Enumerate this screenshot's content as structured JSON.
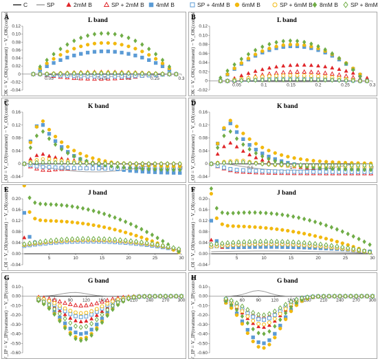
{
  "legend": [
    {
      "label": "C",
      "marker": "line",
      "color": "#1e1e1e"
    },
    {
      "label": "SP",
      "marker": "line",
      "color": "#9a9a9a"
    },
    {
      "label": "2mM B",
      "marker": "triangle",
      "color": "#e0262a"
    },
    {
      "label": "SP + 2mM B",
      "marker": "triangle-open",
      "color": "#e0262a"
    },
    {
      "label": "4mM B",
      "marker": "square",
      "color": "#5b9bd5"
    },
    {
      "label": "SP + 4mM B",
      "marker": "square-open",
      "color": "#5b9bd5"
    },
    {
      "label": "6mM B",
      "marker": "circle",
      "color": "#f2b90f"
    },
    {
      "label": "SP + 6mM B",
      "marker": "circle-open",
      "color": "#f2b90f"
    },
    {
      "label": "8mM B",
      "marker": "diamond",
      "color": "#70ad47"
    },
    {
      "label": "SP + 8mM B",
      "marker": "diamond-open",
      "color": "#70ad47"
    }
  ],
  "panels": [
    {
      "letter": "A",
      "title": "L band",
      "ylabel": "ΔV_OK = V_OK(treatment) − V_OK(control)"
    },
    {
      "letter": "B",
      "title": "L band",
      "ylabel": "ΔV_OK = V_OK(treatment) − V_OK(control)"
    },
    {
      "letter": "C",
      "title": "K band",
      "ylabel": "ΔV_OJ = V_OJ(treatment) − V_OJ(control)"
    },
    {
      "letter": "D",
      "title": "K band",
      "ylabel": "ΔV_OJ = V_OJ(treatment) − V_OJ(control)"
    },
    {
      "letter": "E",
      "title": "J band",
      "ylabel": "ΔV_OI = V_OI(treatment) − V_OI(control)"
    },
    {
      "letter": "F",
      "title": "J band",
      "ylabel": "ΔV_OI = V_OI(treatment) − V_OI(control)"
    },
    {
      "letter": "G",
      "title": "G band",
      "ylabel": "ΔV_IP = V_IP(treatment) − V_IP(control)"
    },
    {
      "letter": "H",
      "title": "G band",
      "ylabel": "ΔV_IP = V_IP(treatment) − V_IP(control)"
    }
  ],
  "chart_data": [
    {
      "panel": "A",
      "type": "scatter",
      "title": "L band",
      "xlim": [
        0,
        0.3
      ],
      "ylim": [
        -0.04,
        0.12
      ],
      "xticks": [
        0.05,
        0.1,
        0.15,
        0.2,
        0.25,
        0.3
      ],
      "xtick_labels": [
        "0.05",
        "0.1",
        "0.15",
        "0.2",
        "0.25",
        "0.3"
      ],
      "yticks": [
        -0.04,
        -0.02,
        0,
        0.02,
        0.04,
        0.06,
        0.08,
        0.1,
        0.12
      ],
      "ytick_labels": [
        "-0.04",
        "-0.02",
        "0",
        "0.02",
        "0.04",
        "0.06",
        "0.08",
        "0.10",
        "0.12"
      ],
      "x": {
        "start": 0.02,
        "end": 0.29,
        "n": 22
      },
      "series": [
        {
          "name": "C",
          "shape": "arc",
          "peak": 0,
          "at": 0.5,
          "w": 0.5
        },
        {
          "name": "SP",
          "shape": "arc",
          "peak": -0.006,
          "at": 0.5,
          "w": 0.45
        },
        {
          "name": "2mM B",
          "shape": "arc",
          "peak": 0.006,
          "at": 0.5,
          "w": 0.45
        },
        {
          "name": "SP + 2mM B",
          "shape": "arc",
          "peak": -0.012,
          "at": 0.45,
          "w": 0.4
        },
        {
          "name": "4mM B",
          "shape": "arc",
          "peak": 0.057,
          "at": 0.5,
          "w": 0.5
        },
        {
          "name": "SP + 4mM B",
          "shape": "arc",
          "peak": -0.006,
          "at": 0.5,
          "w": 0.45
        },
        {
          "name": "6mM B",
          "shape": "arc",
          "peak": 0.078,
          "at": 0.5,
          "w": 0.5
        },
        {
          "name": "SP + 6mM B",
          "shape": "arc",
          "peak": 0.004,
          "at": 0.5,
          "w": 0.45
        },
        {
          "name": "8mM B",
          "shape": "arc",
          "peak": 0.102,
          "at": 0.5,
          "w": 0.5
        },
        {
          "name": "SP + 8mM B",
          "shape": "arc",
          "peak": 0.002,
          "at": 0.5,
          "w": 0.45
        }
      ]
    },
    {
      "panel": "B",
      "type": "scatter",
      "title": "L band",
      "xlim": [
        0,
        0.3
      ],
      "ylim": [
        -0.02,
        0.12
      ],
      "xticks": [
        0.05,
        0.1,
        0.15,
        0.2,
        0.25,
        0.3
      ],
      "xtick_labels": [
        "0.05",
        "0.1",
        "0.15",
        "0.2",
        "0.25",
        "0.3"
      ],
      "yticks": [
        -0.02,
        0,
        0.02,
        0.04,
        0.06,
        0.08,
        0.1,
        0.12
      ],
      "ytick_labels": [
        "-0.02",
        "0",
        "0.02",
        "0.04",
        "0.06",
        "0.08",
        "0.10",
        "0.12"
      ],
      "x": {
        "start": 0.02,
        "end": 0.29,
        "n": 22
      },
      "series": [
        {
          "name": "C",
          "shape": "arc",
          "peak": 0,
          "at": 0.5,
          "w": 0.5
        },
        {
          "name": "SP",
          "shape": "arc",
          "peak": -0.002,
          "at": 0.5,
          "w": 0.45
        },
        {
          "name": "2mM B",
          "shape": "arc",
          "peak": 0.035,
          "at": 0.55,
          "w": 0.5
        },
        {
          "name": "SP + 2mM B",
          "shape": "arc",
          "peak": 0.02,
          "at": 0.55,
          "w": 0.45
        },
        {
          "name": "4mM B",
          "shape": "arc",
          "peak": 0.076,
          "at": 0.5,
          "w": 0.5
        },
        {
          "name": "SP + 4mM B",
          "shape": "arc",
          "peak": 0.005,
          "at": 0.5,
          "w": 0.45
        },
        {
          "name": "6mM B",
          "shape": "arc",
          "peak": 0.08,
          "at": 0.5,
          "w": 0.5
        },
        {
          "name": "SP + 6mM B",
          "shape": "arc",
          "peak": 0.012,
          "at": 0.5,
          "w": 0.45
        },
        {
          "name": "8mM B",
          "shape": "arc",
          "peak": 0.088,
          "at": 0.48,
          "w": 0.5
        },
        {
          "name": "SP + 8mM B",
          "shape": "arc",
          "peak": 0.003,
          "at": 0.5,
          "w": 0.45
        }
      ]
    },
    {
      "panel": "C",
      "type": "scatter",
      "title": "K band",
      "xlim": [
        0,
        2
      ],
      "ylim": [
        -0.04,
        0.16
      ],
      "xticks": [
        0.5,
        1,
        1.5,
        2
      ],
      "xtick_labels": [
        "0.5",
        "1",
        "1.5",
        "2"
      ],
      "yticks": [
        -0.04,
        0,
        0.04,
        0.08,
        0.12,
        0.16
      ],
      "ytick_labels": [
        "-0.04",
        "0",
        "0.04",
        "0.08",
        "0.12",
        "0.16"
      ],
      "x": {
        "start": 0.02,
        "end": 1.98,
        "n": 26
      },
      "series": [
        {
          "name": "C",
          "shape": "flat",
          "v": 0
        },
        {
          "name": "SP",
          "shape": "dip",
          "peak": -0.025,
          "at": 0.45,
          "w": 0.4
        },
        {
          "name": "2mM B",
          "shape": "rise-decay",
          "peak": 0.03,
          "at": 0.12,
          "end": 0
        },
        {
          "name": "SP + 2mM B",
          "shape": "rise-decay",
          "peak": -0.02,
          "at": 0.15,
          "end": -0.01
        },
        {
          "name": "4mM B",
          "shape": "rise-decay",
          "peak": 0.128,
          "at": 0.11,
          "end": -0.03
        },
        {
          "name": "SP + 4mM B",
          "shape": "rise-decay",
          "peak": -0.01,
          "at": 0.15,
          "end": -0.015
        },
        {
          "name": "6mM B",
          "shape": "rise-decay",
          "peak": 0.132,
          "at": 0.12,
          "end": -0.01
        },
        {
          "name": "SP + 6mM B",
          "shape": "rise-decay",
          "peak": 0.015,
          "at": 0.15,
          "end": 0
        },
        {
          "name": "8mM B",
          "shape": "rise-decay",
          "peak": 0.1,
          "at": 0.12,
          "end": -0.02
        },
        {
          "name": "SP + 8mM B",
          "shape": "rise-decay",
          "peak": 0.005,
          "at": 0.15,
          "end": 0
        }
      ]
    },
    {
      "panel": "D",
      "type": "scatter",
      "title": "K band",
      "xlim": [
        0,
        2
      ],
      "ylim": [
        -0.04,
        0.16
      ],
      "xticks": [
        0.5,
        1,
        1.5,
        2
      ],
      "xtick_labels": [
        "0.5",
        "1",
        "1.5",
        "2"
      ],
      "yticks": [
        -0.04,
        0,
        0.04,
        0.08,
        0.12,
        0.16
      ],
      "ytick_labels": [
        "-0.04",
        "0",
        "0.04",
        "0.08",
        "0.12",
        "0.16"
      ],
      "x": {
        "start": 0.02,
        "end": 1.98,
        "n": 26
      },
      "series": [
        {
          "name": "C",
          "shape": "flat",
          "v": 0
        },
        {
          "name": "SP",
          "shape": "dip",
          "peak": -0.02,
          "at": 0.5,
          "w": 0.4
        },
        {
          "name": "2mM B",
          "shape": "rise-decay",
          "peak": 0.065,
          "at": 0.13,
          "end": -0.02
        },
        {
          "name": "SP + 2mM B",
          "shape": "rise-decay",
          "peak": -0.025,
          "at": 0.2,
          "end": -0.03
        },
        {
          "name": "4mM B",
          "shape": "rise-decay",
          "peak": 0.125,
          "at": 0.12,
          "end": -0.02
        },
        {
          "name": "SP + 4mM B",
          "shape": "rise-decay",
          "peak": -0.02,
          "at": 0.2,
          "end": -0.025
        },
        {
          "name": "6mM B",
          "shape": "rise-decay",
          "peak": 0.135,
          "at": 0.13,
          "end": 0
        },
        {
          "name": "SP + 6mM B",
          "shape": "rise-decay",
          "peak": 0.01,
          "at": 0.2,
          "end": -0.01
        },
        {
          "name": "8mM B",
          "shape": "rise-decay",
          "peak": 0.1,
          "at": 0.12,
          "end": -0.02
        },
        {
          "name": "SP + 8mM B",
          "shape": "rise-decay",
          "peak": 0.005,
          "at": 0.2,
          "end": -0.005
        }
      ]
    },
    {
      "panel": "E",
      "type": "scatter",
      "title": "J band",
      "xlim": [
        0,
        30
      ],
      "ylim": [
        -0.04,
        0.2
      ],
      "xticks": [
        5,
        10,
        15,
        20,
        25,
        30
      ],
      "xtick_labels": [
        "5",
        "10",
        "15",
        "20",
        "25",
        "30"
      ],
      "yticks": [
        -0.04,
        0,
        0.04,
        0.08,
        0.12,
        0.16,
        0.2
      ],
      "ytick_labels": [
        "-0.04",
        "0.00",
        "0.04",
        "0.08",
        "0.12",
        "0.16",
        "0.20"
      ],
      "x": {
        "start": 0.3,
        "end": 29.5,
        "n": 30
      },
      "series": [
        {
          "name": "C",
          "shape": "flat",
          "v": 0
        },
        {
          "name": "SP",
          "shape": "arc",
          "peak": 0.045,
          "at": 0.42,
          "w": 0.7
        },
        {
          "name": "2mM B",
          "shape": "arc2",
          "peak": 0.045,
          "at": 0.42,
          "w": 0.7,
          "early": 0.03
        },
        {
          "name": "SP + 2mM B",
          "shape": "arc",
          "peak": 0.05,
          "at": 0.42,
          "w": 0.7
        },
        {
          "name": "4mM B",
          "shape": "arc2",
          "peak": 0.045,
          "at": 0.42,
          "w": 0.7,
          "early": 0.12
        },
        {
          "name": "SP + 4mM B",
          "shape": "arc",
          "peak": 0.045,
          "at": 0.42,
          "w": 0.7
        },
        {
          "name": "6mM B",
          "shape": "arc2",
          "peak": 0.12,
          "at": 0.12,
          "w": 0.9,
          "early": 0.13
        },
        {
          "name": "SP + 6mM B",
          "shape": "arc",
          "peak": 0.05,
          "at": 0.42,
          "w": 0.7
        },
        {
          "name": "8mM B",
          "shape": "arc2",
          "peak": 0.18,
          "at": 0.12,
          "w": 0.9,
          "early": 0.1
        },
        {
          "name": "SP + 8mM B",
          "shape": "arc",
          "peak": 0.055,
          "at": 0.42,
          "w": 0.7
        }
      ]
    },
    {
      "panel": "F",
      "type": "scatter",
      "title": "J band",
      "xlim": [
        0,
        30
      ],
      "ylim": [
        -0.04,
        0.2
      ],
      "xticks": [
        5,
        10,
        15,
        20,
        25,
        30
      ],
      "xtick_labels": [
        "5",
        "10",
        "15",
        "20",
        "25",
        "30"
      ],
      "yticks": [
        -0.04,
        0,
        0.04,
        0.08,
        0.12,
        0.16,
        0.2
      ],
      "ytick_labels": [
        "-0.04",
        "0.00",
        "0.04",
        "0.08",
        "0.12",
        "0.16",
        "0.20"
      ],
      "x": {
        "start": 0.3,
        "end": 29.5,
        "n": 30
      },
      "series": [
        {
          "name": "C",
          "shape": "flat",
          "v": 0
        },
        {
          "name": "SP",
          "shape": "arc",
          "peak": 0.01,
          "at": 0.35,
          "w": 0.7
        },
        {
          "name": "2mM B",
          "shape": "arc2",
          "peak": 0.025,
          "at": 0.35,
          "w": 0.8,
          "early": 0.03
        },
        {
          "name": "SP + 2mM B",
          "shape": "arc",
          "peak": 0.04,
          "at": 0.35,
          "w": 0.7
        },
        {
          "name": "4mM B",
          "shape": "arc2",
          "peak": 0.025,
          "at": 0.35,
          "w": 0.8,
          "early": 0.1
        },
        {
          "name": "SP + 4mM B",
          "shape": "arc",
          "peak": 0.035,
          "at": 0.35,
          "w": 0.7
        },
        {
          "name": "6mM B",
          "shape": "arc2",
          "peak": 0.1,
          "at": 0.12,
          "w": 0.9,
          "early": 0.12
        },
        {
          "name": "SP + 6mM B",
          "shape": "arc",
          "peak": 0.035,
          "at": 0.35,
          "w": 0.7
        },
        {
          "name": "8mM B",
          "shape": "arc2",
          "peak": 0.15,
          "at": 0.25,
          "w": 0.85,
          "early": 0.1
        },
        {
          "name": "SP + 8mM B",
          "shape": "arc",
          "peak": 0.045,
          "at": 0.35,
          "w": 0.7
        }
      ]
    },
    {
      "panel": "G",
      "type": "scatter",
      "title": "G band",
      "xlim": [
        0,
        300
      ],
      "ylim": [
        -0.6,
        0.1
      ],
      "xticks": [
        30,
        60,
        90,
        120,
        150,
        180,
        210,
        240,
        270,
        300
      ],
      "xtick_labels": [
        "30",
        "60",
        "90",
        "120",
        "150",
        "180",
        "210",
        "240",
        "270",
        "300"
      ],
      "yticks": [
        -0.6,
        -0.5,
        -0.4,
        -0.3,
        -0.2,
        -0.1,
        0,
        0.1
      ],
      "ytick_labels": [
        "-0.60",
        "-0.50",
        "-0.40",
        "-0.30",
        "-0.20",
        "-0.10",
        "0.00",
        "0.10"
      ],
      "x": {
        "start": 30,
        "end": 300,
        "n": 28
      },
      "series": [
        {
          "name": "C",
          "shape": "flat",
          "v": 0
        },
        {
          "name": "SP",
          "shape": "gband",
          "peak": 0.04,
          "at": 0.25,
          "w": 0.25
        },
        {
          "name": "2mM B",
          "shape": "gband",
          "peak": -0.27,
          "at": 0.3,
          "w": 0.4
        },
        {
          "name": "SP + 2mM B",
          "shape": "gband",
          "peak": -0.1,
          "at": 0.3,
          "w": 0.4
        },
        {
          "name": "4mM B",
          "shape": "gband",
          "peak": -0.4,
          "at": 0.3,
          "w": 0.4
        },
        {
          "name": "SP + 4mM B",
          "shape": "gband",
          "peak": -0.22,
          "at": 0.3,
          "w": 0.4
        },
        {
          "name": "6mM B",
          "shape": "gband",
          "peak": -0.45,
          "at": 0.3,
          "w": 0.4
        },
        {
          "name": "SP + 6mM B",
          "shape": "gband",
          "peak": -0.18,
          "at": 0.3,
          "w": 0.4
        },
        {
          "name": "8mM B",
          "shape": "gband",
          "peak": -0.47,
          "at": 0.3,
          "w": 0.4
        },
        {
          "name": "SP + 8mM B",
          "shape": "gband",
          "peak": -0.33,
          "at": 0.3,
          "w": 0.4
        }
      ]
    },
    {
      "panel": "H",
      "type": "scatter",
      "title": "G band",
      "xlim": [
        0,
        300
      ],
      "ylim": [
        -0.6,
        0.1
      ],
      "xticks": [
        30,
        60,
        90,
        120,
        150,
        180,
        210,
        240,
        270,
        300
      ],
      "xtick_labels": [
        "30",
        "60",
        "90",
        "120",
        "150",
        "180",
        "210",
        "240",
        "270",
        "300"
      ],
      "yticks": [
        -0.6,
        -0.5,
        -0.4,
        -0.3,
        -0.2,
        -0.1,
        0,
        0.1
      ],
      "ytick_labels": [
        "-0.60",
        "-0.50",
        "-0.40",
        "-0.30",
        "-0.20",
        "-0.10",
        "0.00",
        "0.10"
      ],
      "x": {
        "start": 30,
        "end": 300,
        "n": 28
      },
      "series": [
        {
          "name": "C",
          "shape": "flat",
          "v": 0
        },
        {
          "name": "SP",
          "shape": "gband",
          "peak": 0.06,
          "at": 0.22,
          "w": 0.2
        },
        {
          "name": "2mM B",
          "shape": "gband",
          "peak": -0.33,
          "at": 0.25,
          "w": 0.35
        },
        {
          "name": "SP + 2mM B",
          "shape": "gband",
          "peak": -0.22,
          "at": 0.25,
          "w": 0.35
        },
        {
          "name": "4mM B",
          "shape": "gband",
          "peak": -0.5,
          "at": 0.25,
          "w": 0.35
        },
        {
          "name": "SP + 4mM B",
          "shape": "gband",
          "peak": -0.25,
          "at": 0.25,
          "w": 0.35
        },
        {
          "name": "6mM B",
          "shape": "gband",
          "peak": -0.55,
          "at": 0.25,
          "w": 0.35
        },
        {
          "name": "SP + 6mM B",
          "shape": "gband",
          "peak": -0.3,
          "at": 0.25,
          "w": 0.35
        },
        {
          "name": "8mM B",
          "shape": "gband",
          "peak": -0.4,
          "at": 0.25,
          "w": 0.35
        },
        {
          "name": "SP + 8mM B",
          "shape": "gband",
          "peak": -0.2,
          "at": 0.25,
          "w": 0.35
        }
      ]
    }
  ]
}
